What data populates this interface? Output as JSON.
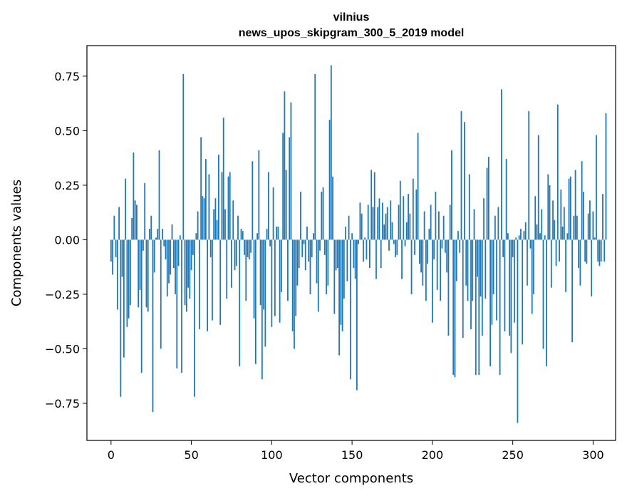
{
  "chart_data": {
    "type": "bar",
    "title": "vilnius",
    "subtitle": "news_upos_skipgram_300_5_2019 model",
    "xlabel": "Vector components",
    "ylabel": "Components values",
    "xlim": [
      -15,
      314
    ],
    "ylim": [
      -0.92,
      0.89
    ],
    "xticks": [
      0,
      50,
      100,
      150,
      200,
      250,
      300
    ],
    "xtick_labels": [
      "0",
      "50",
      "100",
      "150",
      "200",
      "250",
      "300"
    ],
    "yticks": [
      0.75,
      0.5,
      0.25,
      0.0,
      -0.25,
      -0.5,
      -0.75
    ],
    "ytick_labels": [
      "0.75",
      "0.50",
      "0.25",
      "0.00",
      "−0.25",
      "−0.50",
      "−0.75"
    ],
    "bar_color": "#1f77b4",
    "values": [
      -0.1,
      -0.16,
      0.11,
      -0.08,
      -0.32,
      0.15,
      -0.72,
      -0.17,
      -0.54,
      0.28,
      -0.4,
      -0.36,
      -0.3,
      0.1,
      0.4,
      0.18,
      0.16,
      -0.31,
      -0.23,
      -0.61,
      -0.05,
      0.26,
      -0.31,
      -0.33,
      0.05,
      0.11,
      -0.79,
      -0.15,
      0.01,
      0.05,
      0.41,
      -0.5,
      0.05,
      -0.03,
      -0.09,
      -0.26,
      -0.2,
      -0.16,
      0.07,
      -0.13,
      -0.25,
      -0.59,
      -0.12,
      0.02,
      -0.61,
      0.76,
      -0.3,
      -0.33,
      -0.22,
      -0.27,
      -0.14,
      -0.07,
      -0.72,
      0.03,
      0.13,
      -0.41,
      0.47,
      0.2,
      0.19,
      0.37,
      -0.42,
      0.3,
      -0.08,
      -0.37,
      0.14,
      0.19,
      0.09,
      0.39,
      -0.39,
      0.31,
      0.56,
      0.14,
      -0.27,
      0.29,
      0.31,
      -0.22,
      0.18,
      -0.14,
      -0.12,
      0.11,
      -0.58,
      0.05,
      0.04,
      -0.07,
      -0.28,
      -0.08,
      -0.09,
      -0.06,
      0.36,
      -0.36,
      -0.57,
      0.03,
      0.41,
      -0.3,
      -0.64,
      -0.32,
      -0.49,
      0.05,
      0.31,
      -0.03,
      -0.4,
      0.24,
      -0.35,
      0.06,
      0.06,
      -0.38,
      -0.24,
      0.49,
      0.68,
      0.32,
      -0.28,
      0.47,
      0.63,
      -0.42,
      -0.5,
      -0.35,
      -0.21,
      -0.13,
      0.22,
      -0.08,
      -0.02,
      -0.14,
      0.06,
      -0.1,
      -0.25,
      -0.08,
      0.03,
      0.76,
      -0.2,
      -0.33,
      -0.05,
      0.22,
      0.24,
      -0.07,
      -0.25,
      -0.21,
      0.55,
      0.8,
      0.29,
      -0.34,
      -0.14,
      -0.13,
      -0.53,
      -0.39,
      -0.42,
      -0.27,
      0.06,
      -0.19,
      0.11,
      -0.64,
      0.03,
      -0.13,
      -0.18,
      -0.69,
      -0.02,
      0.17,
      0.12,
      -0.1,
      0.01,
      -0.09,
      0.16,
      -0.13,
      0.32,
      0.15,
      0.31,
      -0.18,
      0.15,
      0.19,
      -0.13,
      0.17,
      0.07,
      0.12,
      0.15,
      -0.05,
      0.18,
      0.08,
      -0.02,
      -0.08,
      -0.07,
      0.16,
      0.27,
      -0.18,
      0.2,
      -0.03,
      0.08,
      0.21,
      0.12,
      -0.25,
      0.28,
      -0.07,
      0.23,
      0.49,
      -0.11,
      -0.15,
      -0.21,
      0.13,
      -0.28,
      -0.11,
      0.05,
      0.16,
      -0.38,
      -0.09,
      0.22,
      -0.23,
      0.13,
      -0.28,
      -0.04,
      0.11,
      -0.06,
      -0.15,
      -0.44,
      0.16,
      0.41,
      -0.62,
      -0.63,
      -0.19,
      0.04,
      -0.06,
      0.59,
      -0.45,
      0.54,
      -0.21,
      -0.28,
      0.3,
      -0.41,
      -0.28,
      0.14,
      -0.62,
      -0.17,
      -0.62,
      -0.26,
      -0.44,
      0.19,
      -0.27,
      0.33,
      0.38,
      -0.58,
      -0.39,
      -0.25,
      0.11,
      -0.37,
      0.15,
      -0.62,
      0.69,
      -0.08,
      -0.42,
      0.37,
      0.03,
      -0.44,
      -0.52,
      -0.08,
      -0.38,
      0.01,
      -0.84,
      0.02,
      0.05,
      -0.48,
      0.04,
      0.08,
      -0.21,
      0.59,
      -0.04,
      -0.34,
      -0.25,
      0.2,
      0.07,
      0.48,
      0.03,
      0.14,
      -0.5,
      0.02,
      -0.58,
      0.3,
      0.25,
      -0.22,
      0.18,
      0.09,
      -0.12,
      0.62,
      -0.1,
      0.23,
      0.06,
      0.15,
      -0.24,
      0.03,
      0.28,
      0.29,
      -0.47,
      0.11,
      0.32,
      0.11,
      -0.13,
      -0.21,
      0.36,
      0.22,
      -0.1,
      -0.11,
      0.12,
      0.18,
      -0.26,
      0.13,
      0.01,
      0.48,
      -0.1,
      -0.12,
      -0.1,
      0.21,
      -0.1,
      0.58
    ]
  }
}
